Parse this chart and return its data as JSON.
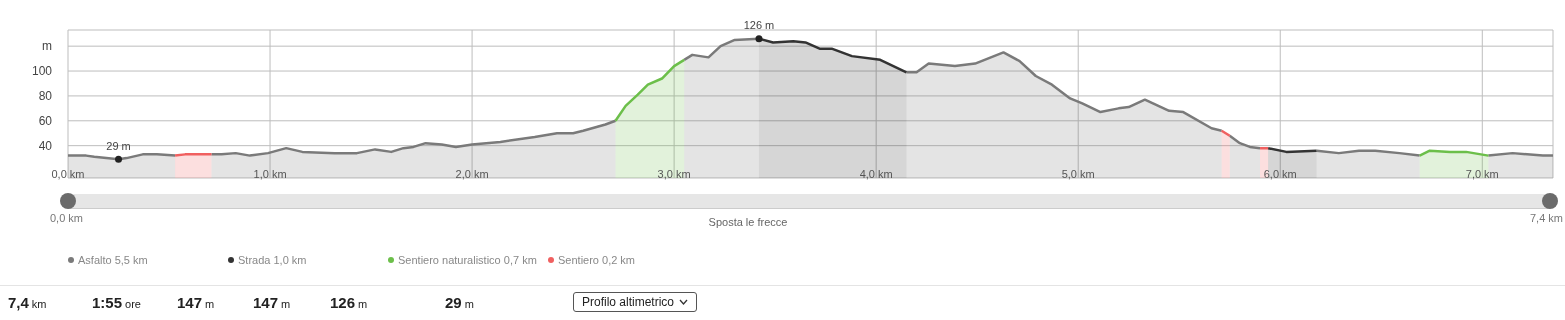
{
  "chart_data": {
    "type": "area",
    "x": [
      0.0,
      0.09,
      0.13,
      0.25,
      0.29,
      0.37,
      0.44,
      0.53,
      0.58,
      0.71,
      0.76,
      0.83,
      0.9,
      0.99,
      1.08,
      1.16,
      1.32,
      1.43,
      1.52,
      1.6,
      1.66,
      1.71,
      1.77,
      1.85,
      1.92,
      2.0,
      2.14,
      2.31,
      2.42,
      2.5,
      2.55,
      2.66,
      2.71,
      2.76,
      2.82,
      2.87,
      2.94,
      3.0,
      3.05,
      3.09,
      3.17,
      3.23,
      3.3,
      3.42,
      3.49,
      3.59,
      3.65,
      3.72,
      3.78,
      3.88,
      4.02,
      4.15,
      4.2,
      4.26,
      4.39,
      4.49,
      4.63,
      4.71,
      4.79,
      4.87,
      4.96,
      5.02,
      5.11,
      5.2,
      5.25,
      5.33,
      5.45,
      5.52,
      5.66,
      5.71,
      5.73,
      5.75,
      5.8,
      5.85,
      5.9,
      5.94,
      6.03,
      6.18,
      6.29,
      6.39,
      6.47,
      6.59,
      6.69,
      6.74,
      6.84,
      6.92,
      7.03,
      7.15,
      7.3,
      7.35
    ],
    "series": [
      {
        "name": "Asfalto 5,5 km",
        "color": "#7a7a7a",
        "values": [
          32,
          32,
          31,
          29,
          30,
          33,
          33,
          32,
          null,
          33,
          33,
          34,
          32,
          34,
          38,
          35,
          34,
          34,
          37,
          35,
          38,
          39,
          42,
          41,
          39,
          41,
          43,
          47,
          50,
          50,
          52,
          57,
          60,
          null,
          null,
          null,
          null,
          null,
          109,
          113,
          111,
          120,
          125,
          126,
          null,
          null,
          null,
          null,
          null,
          null,
          null,
          99,
          99,
          106,
          104,
          106,
          115,
          108,
          96,
          89,
          78,
          74,
          67,
          70,
          71,
          77,
          68,
          67,
          54,
          52,
          null,
          48,
          42,
          39,
          38,
          null,
          null,
          36,
          34,
          36,
          36,
          34,
          32,
          null,
          null,
          null,
          32,
          34,
          32,
          32
        ]
      },
      {
        "name": "Strada 1,0 km",
        "color": "#333333",
        "values": [
          null,
          null,
          null,
          null,
          null,
          null,
          null,
          null,
          null,
          null,
          null,
          null,
          null,
          null,
          null,
          null,
          null,
          null,
          null,
          null,
          null,
          null,
          null,
          null,
          null,
          null,
          null,
          null,
          null,
          null,
          null,
          null,
          null,
          null,
          null,
          null,
          null,
          null,
          null,
          null,
          null,
          null,
          null,
          126,
          123,
          124,
          123,
          118,
          118,
          112,
          109,
          99,
          null,
          null,
          null,
          null,
          null,
          null,
          null,
          null,
          null,
          null,
          null,
          null,
          null,
          null,
          null,
          null,
          null,
          null,
          null,
          null,
          null,
          null,
          null,
          38,
          35,
          36,
          null,
          null,
          null,
          null,
          null,
          null,
          null,
          null,
          null,
          null,
          null,
          null
        ]
      },
      {
        "name": "Sentiero naturalistico 0,7 km",
        "color": "#6cbf4a",
        "values": [
          null,
          null,
          null,
          null,
          null,
          null,
          null,
          null,
          null,
          null,
          null,
          null,
          null,
          null,
          null,
          null,
          null,
          null,
          null,
          null,
          null,
          null,
          null,
          null,
          null,
          null,
          null,
          null,
          null,
          null,
          null,
          null,
          60,
          72,
          81,
          89,
          94,
          104,
          109,
          null,
          null,
          null,
          null,
          null,
          null,
          null,
          null,
          null,
          null,
          null,
          null,
          null,
          null,
          null,
          null,
          null,
          null,
          null,
          null,
          null,
          null,
          null,
          null,
          null,
          null,
          null,
          null,
          null,
          null,
          null,
          null,
          null,
          null,
          null,
          null,
          null,
          null,
          null,
          null,
          null,
          null,
          null,
          32,
          36,
          35,
          35,
          32,
          null,
          null,
          null
        ]
      },
      {
        "name": "Sentiero 0,2 km",
        "color": "#f06060",
        "values": [
          null,
          null,
          null,
          null,
          null,
          null,
          null,
          32,
          33,
          33,
          null,
          null,
          null,
          null,
          null,
          null,
          null,
          null,
          null,
          null,
          null,
          null,
          null,
          null,
          null,
          null,
          null,
          null,
          null,
          null,
          null,
          null,
          null,
          null,
          null,
          null,
          null,
          null,
          null,
          null,
          null,
          null,
          null,
          null,
          null,
          null,
          null,
          null,
          null,
          null,
          null,
          null,
          null,
          null,
          null,
          null,
          null,
          null,
          null,
          null,
          null,
          null,
          null,
          null,
          null,
          null,
          null,
          null,
          null,
          52,
          50,
          48,
          null,
          null,
          38,
          38,
          null,
          null,
          null,
          null,
          null,
          null,
          null,
          null,
          null,
          null,
          null,
          null,
          null,
          null
        ]
      }
    ],
    "xlim": [
      0,
      7.35
    ],
    "xticks": [
      {
        "value": 0,
        "label": "0,0 km"
      },
      {
        "value": 1,
        "label": "1,0 km"
      },
      {
        "value": 2,
        "label": "2,0 km"
      },
      {
        "value": 3,
        "label": "3,0 km"
      },
      {
        "value": 4,
        "label": "4,0 km"
      },
      {
        "value": 5,
        "label": "5,0 km"
      },
      {
        "value": 6,
        "label": "6,0 km"
      },
      {
        "value": 7,
        "label": "7,0 km"
      }
    ],
    "ylim": [
      14,
      133
    ],
    "yticks": [
      40,
      60,
      80,
      100,
      {
        "value": 120,
        "label": "m"
      }
    ],
    "grid": true,
    "legend": "bottom",
    "annotations": [
      {
        "text": "29 m",
        "x": 0.25,
        "y": 29
      },
      {
        "text": "126 m",
        "x": 3.42,
        "y": 126
      },
      "0,0 km",
      "Sposta le frecce",
      "7,4 km",
      "7,4 km",
      "1:55 ore",
      "147 m",
      "147 m",
      "126 m",
      "29 m",
      "Profilo altimetrico"
    ]
  }
}
